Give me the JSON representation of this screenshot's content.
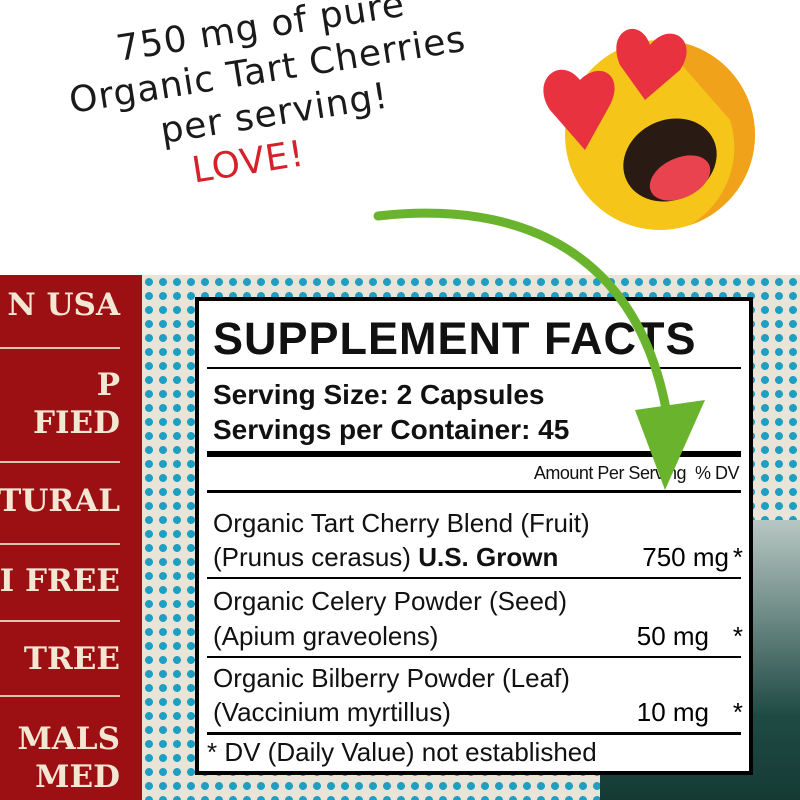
{
  "callout": {
    "lines": [
      "750 mg of pure",
      "Organic Tart Cherries",
      "per serving!"
    ],
    "exclaim": "LOVE!"
  },
  "emoji": {
    "name": "heart-eyes-emoji",
    "face_color": "#f6c51a",
    "heart_color": "#e8323f"
  },
  "arrow_color": "#6ab42d",
  "claims": [
    "N USA",
    "P",
    "FIED",
    "TURAL",
    "I FREE",
    "TREE",
    "MALS",
    "MED"
  ],
  "facts": {
    "title": "SUPPLEMENT FACTS",
    "serving_size": "Serving Size: 2 Capsules",
    "servings_per_container": "Servings per Container: 45",
    "amount_header": "Amount Per Serving",
    "dv_header": "% DV",
    "ingredients": [
      {
        "line1": "Organic Tart Cherry Blend (Fruit)",
        "line2": "(Prunus cerasus)",
        "line2_bold": "U.S. Grown",
        "amount": "750 mg",
        "dv": "*"
      },
      {
        "line1": "Organic Celery Powder (Seed)",
        "line2": "(Apium graveolens)",
        "amount": "50 mg",
        "dv": "*"
      },
      {
        "line1": "Organic Bilberry Powder (Leaf)",
        "line2": "(Vaccinium myrtillus)",
        "amount": "10 mg",
        "dv": "*"
      }
    ],
    "footnote": "* DV (Daily Value) not established"
  }
}
